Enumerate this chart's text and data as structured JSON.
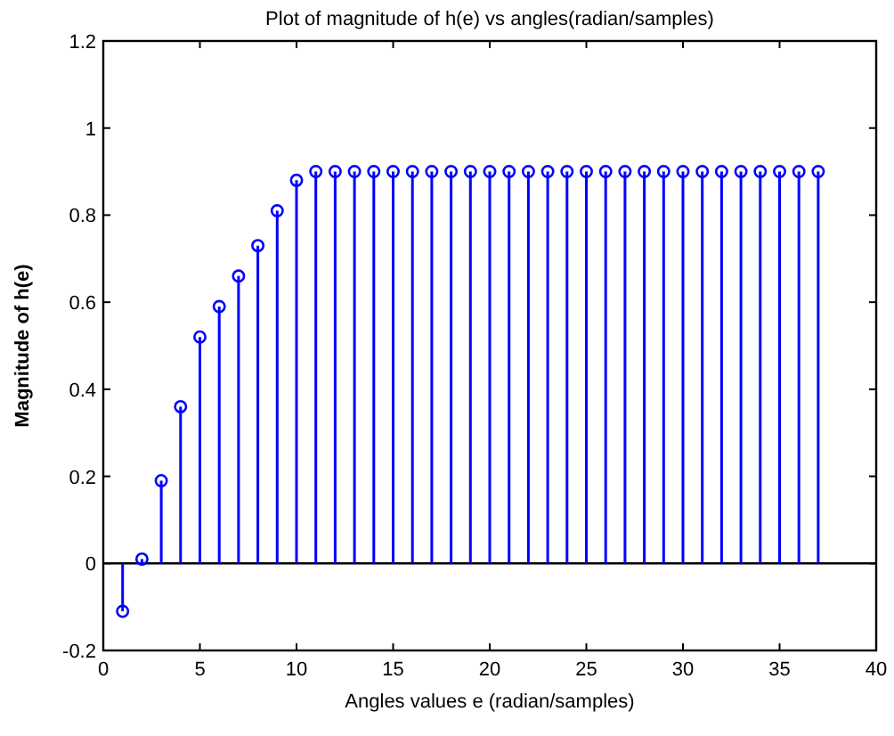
{
  "chart_data": {
    "type": "lollipop",
    "title": "Plot of magnitude of h(e) vs angles(radian/samples)",
    "xlabel": "Angles values e (radian/samples)",
    "ylabel": "Magnitude of h(e)",
    "x": [
      1,
      2,
      3,
      4,
      5,
      6,
      7,
      8,
      9,
      10,
      11,
      12,
      13,
      14,
      15,
      16,
      17,
      18,
      19,
      20,
      21,
      22,
      23,
      24,
      25,
      26,
      27,
      28,
      29,
      30,
      31,
      32,
      33,
      34,
      35,
      36,
      37
    ],
    "values": [
      -0.11,
      0.01,
      0.19,
      0.36,
      0.52,
      0.59,
      0.66,
      0.73,
      0.81,
      0.88,
      0.9,
      0.9,
      0.9,
      0.9,
      0.9,
      0.9,
      0.9,
      0.9,
      0.9,
      0.9,
      0.9,
      0.9,
      0.9,
      0.9,
      0.9,
      0.9,
      0.9,
      0.9,
      0.9,
      0.9,
      0.9,
      0.9,
      0.9,
      0.9,
      0.9,
      0.9,
      0.9
    ],
    "color": "#0000ff",
    "marker": "circle",
    "xlim": [
      0,
      40
    ],
    "xticks": [
      0,
      5,
      10,
      15,
      20,
      25,
      30,
      35,
      40
    ],
    "ylim": [
      -0.2,
      1.2
    ],
    "yticks": [
      -0.2,
      0,
      0.2,
      0.4,
      0.6,
      0.8,
      1,
      1.2
    ],
    "ref_lines": [
      {
        "axis": "y",
        "value": 0,
        "color": "#000000"
      }
    ]
  }
}
